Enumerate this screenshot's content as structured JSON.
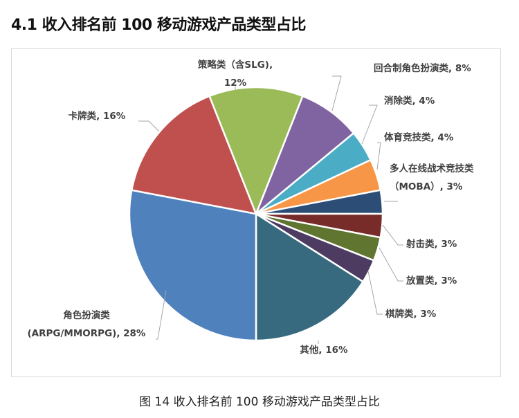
{
  "header": {
    "title": "4.1 收入排名前 100 移动游戏产品类型占比"
  },
  "caption": "图 14  收入排名前 100 移动游戏产品类型占比",
  "chart_data": {
    "type": "pie",
    "title": "",
    "unit": "%",
    "slices": [
      {
        "name": "回合制角色扮演类",
        "value": 8,
        "label_lines": [
          "回合制角色扮演类, 8%"
        ],
        "color": "#8064A2"
      },
      {
        "name": "消除类",
        "value": 4,
        "label_lines": [
          "消除类, 4%"
        ],
        "color": "#4BACC6"
      },
      {
        "name": "体育竞技类",
        "value": 4,
        "label_lines": [
          "体育竞技类, 4%"
        ],
        "color": "#F79646"
      },
      {
        "name": "多人在线战术竞技类（MOBA）",
        "value": 3,
        "label_lines": [
          "多人在线战术竞技类",
          "（MOBA）, 3%"
        ],
        "color": "#2C4D75"
      },
      {
        "name": "射击类",
        "value": 3,
        "label_lines": [
          "射击类, 3%"
        ],
        "color": "#772C2A"
      },
      {
        "name": "放置类",
        "value": 3,
        "label_lines": [
          "放置类, 3%"
        ],
        "color": "#5F7530"
      },
      {
        "name": "棋牌类",
        "value": 3,
        "label_lines": [
          "棋牌类, 3%"
        ],
        "color": "#4D3B62"
      },
      {
        "name": "其他",
        "value": 16,
        "label_lines": [
          "其他, 16%"
        ],
        "color": "#376A7F"
      },
      {
        "name": "角色扮演类(ARPG/MMORPG)",
        "value": 28,
        "label_lines": [
          "角色扮演类",
          "(ARPG/MMORPG), 28%"
        ],
        "color": "#4F81BD"
      },
      {
        "name": "卡牌类",
        "value": 16,
        "label_lines": [
          "卡牌类, 16%"
        ],
        "color": "#C0504D"
      },
      {
        "name": "策略类（含SLG)",
        "value": 12,
        "label_lines": [
          "策略类（含SLG),",
          "12%"
        ],
        "color": "#9BBB59"
      }
    ]
  }
}
